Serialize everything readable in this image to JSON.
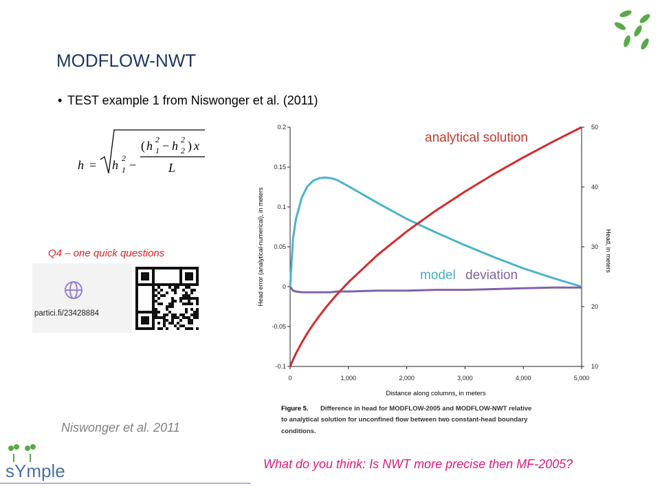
{
  "title": "MODFLOW-NWT",
  "bullet": "TEST example 1 from Niswonger et al. (2011)",
  "formula": {
    "lhs": "h",
    "eq": "=",
    "h": "h",
    "sq": "2",
    "one": "1",
    "minus": "−",
    "open": "(",
    "close": ")",
    "two": "2",
    "x": "x",
    "L": "L"
  },
  "quiz": {
    "label": "Q4 – one quick questions",
    "url": "partici.fi/23428884"
  },
  "citation": "Niswonger et al. 2011",
  "question": "What do you think: Is NWT more precise then MF-2005?",
  "logo_text": "sYmple",
  "chart_data": {
    "type": "line",
    "x_label": "Distance along columns, in meters",
    "y_label": "Head error (analytical-numerical), in meters",
    "y2_label": "Head, in meters",
    "caption": [
      "Figure 5.",
      "Difference in head for MODFLOW-2005 and MODFLOW-NWT relative",
      "to analytical solution for unconfined flow between two constant-head boundary",
      "conditions."
    ],
    "annotations": [
      {
        "text": "analytical solution",
        "color": "#c0392b"
      },
      {
        "text": "model",
        "color": "#4bacc6"
      },
      {
        "text": "deviation",
        "color": "#8064a2"
      }
    ],
    "x": [
      0,
      50,
      100,
      200,
      300,
      400,
      500,
      600,
      700,
      800,
      1000,
      1500,
      2000,
      2500,
      3000,
      3500,
      4000,
      4500,
      5000
    ],
    "series": [
      {
        "color": "#4bb3cc",
        "values": [
          0,
          0.06,
          0.085,
          0.112,
          0.126,
          0.133,
          0.136,
          0.137,
          0.136,
          0.134,
          0.126,
          0.105,
          0.085,
          0.068,
          0.052,
          0.037,
          0.023,
          0.011,
          0
        ]
      },
      {
        "color": "#8060b0",
        "values": [
          0,
          -0.005,
          -0.006,
          -0.007,
          -0.007,
          -0.007,
          -0.007,
          -0.007,
          -0.007,
          -0.006,
          -0.006,
          -0.005,
          -0.005,
          -0.004,
          -0.004,
          -0.003,
          -0.002,
          -0.001,
          -0.001
        ]
      },
      {
        "color": "#d42a2a",
        "axis": "y2",
        "values": [
          10,
          11.14,
          12.17,
          14,
          15.62,
          17.09,
          18.44,
          19.7,
          20.88,
          22,
          24.08,
          28.64,
          32.56,
          36.06,
          39.24,
          42.19,
          44.94,
          47.54,
          50
        ]
      }
    ],
    "xlim": [
      0,
      5000
    ],
    "xticks": [
      0,
      {
        "value": 1000,
        "label": "1,000"
      },
      {
        "value": 2000,
        "label": "2,000"
      },
      {
        "value": 3000,
        "label": "3,000"
      },
      {
        "value": 4000,
        "label": "4,000"
      },
      {
        "value": 5000,
        "label": "5,000"
      }
    ],
    "ylim": [
      -0.1,
      0.2
    ],
    "yticks": [
      -0.1,
      -0.05,
      0,
      0.05,
      0.1,
      0.15,
      0.2
    ],
    "y2lim": [
      10,
      50
    ],
    "y2ticks": [
      10,
      20,
      30,
      40,
      50
    ]
  }
}
